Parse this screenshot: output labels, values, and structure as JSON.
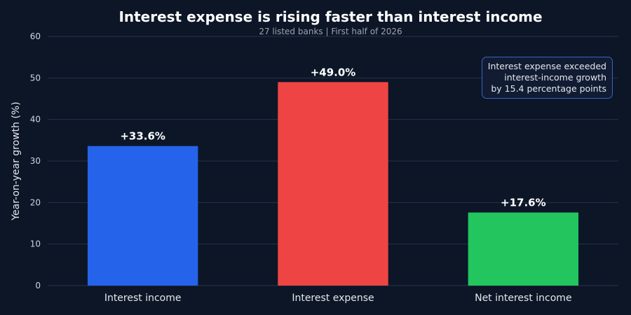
{
  "header": {
    "title": "Interest expense is rising faster than interest income",
    "subtitle": "27 listed banks | First half of 2026"
  },
  "annotation": {
    "lines": [
      "Interest expense exceeded",
      "interest-income growth",
      "by 15.4 percentage points"
    ]
  },
  "colors": {
    "background": "#0c1627",
    "grid": "#25324a",
    "interest_income": "#2563eb",
    "interest_expense": "#ef4444",
    "net_interest_income": "#22c55e"
  },
  "chart_data": {
    "type": "bar",
    "title": "Interest expense is rising faster than interest income",
    "subtitle": "27 listed banks | First half of 2026",
    "xlabel": "",
    "ylabel": "Year-on-year growth (%)",
    "categories": [
      "Interest income",
      "Interest expense",
      "Net interest income"
    ],
    "values": [
      33.6,
      49.0,
      17.6
    ],
    "data_labels": [
      "+33.6%",
      "+49.0%",
      "+17.6%"
    ],
    "bar_colors": [
      "#2563eb",
      "#ef4444",
      "#22c55e"
    ],
    "ylim": [
      0,
      60
    ],
    "yticks": [
      0,
      10,
      20,
      30,
      40,
      50,
      60
    ],
    "grid": true,
    "legend": "none"
  }
}
